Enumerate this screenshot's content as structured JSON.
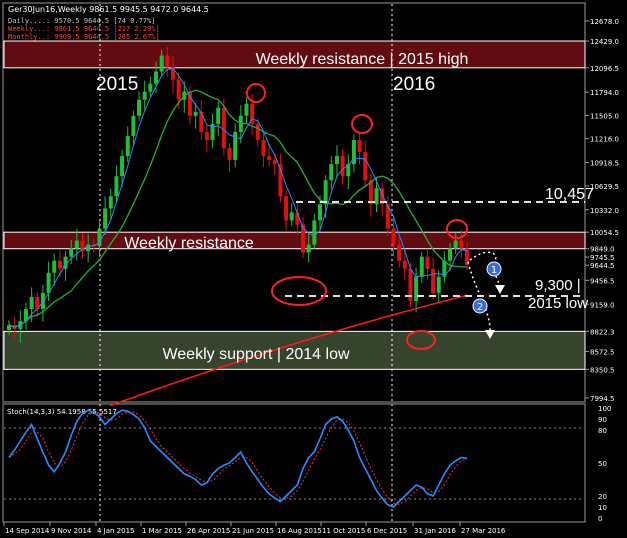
{
  "header": {
    "symbol_line": "Ger30Jun16,Weekly  9861.5 9945.5 9472.0 9644.5",
    "info_lines": [
      {
        "text": "Daily....: 9570.5 9644.5 [74 0.77%]",
        "color": "#c8c8c8"
      },
      {
        "text": "Weekly...: 9861.5 9644.5 [217 2.20%]",
        "color": "#ff4040"
      },
      {
        "text": "Monthly..: 9909.5 9644.5 [265 2.67%]",
        "color": "#ff4040"
      }
    ]
  },
  "annotations": {
    "year_2015": "2015",
    "year_2016": "2016",
    "weekly_resistance_top": "Weekly resistance | 2015 high",
    "weekly_resistance_mid": "Weekly resistance",
    "weekly_support": "Weekly support | 2014 low",
    "level_10457": "10,457",
    "level_9300_a": "9,300 |",
    "level_9300_b": "2015 low",
    "marker_1": "1",
    "marker_2": "2"
  },
  "price_axis": {
    "labels": [
      "12678.0",
      "12429.0",
      "12096.5",
      "11794.0",
      "11505.0",
      "11216.0",
      "10918.5",
      "10629.5",
      "10332.0",
      "10054.5",
      "9849.0",
      "9745.5",
      "9644.5",
      "9456.5",
      "9159.0",
      "8822.3",
      "8572.5",
      "8350.5",
      "7994.5"
    ]
  },
  "stoch": {
    "label": "Stoch(14,3,3) 54.1958 55.5517",
    "axis_labels": [
      "100",
      "90",
      "80",
      "50",
      "20",
      "10",
      "0"
    ]
  },
  "x_axis": {
    "labels": [
      "14 Sep 2014",
      "9 Nov 2014",
      "4 Jan 2015",
      "1 Mar 2015",
      "26 Apr 2015",
      "21 Jun 2015",
      "16 Aug 2015",
      "11 Oct 2015",
      "6 Dec 2015",
      "31 Jan 2016",
      "27 Mar 2016"
    ]
  },
  "colors": {
    "background": "#000000",
    "bull_candle": "#1fbf3a",
    "bear_candle": "#e01010",
    "ma_fast": "#2a8cff",
    "ma_mid": "#22b03a",
    "ma_slow": "#ff1a1a",
    "resistance_zone": "#6b0d12",
    "support_zone": "#3c4a32",
    "stoch_main": "#2a8cff",
    "stoch_signal": "#ff3030"
  },
  "chart_data": {
    "type": "candlestick",
    "symbol": "Ger30Jun16",
    "timeframe": "Weekly",
    "x": [
      "14 Sep 2014",
      "9 Nov 2014",
      "4 Jan 2015",
      "1 Mar 2015",
      "26 Apr 2015",
      "21 Jun 2015",
      "16 Aug 2015",
      "11 Oct 2015",
      "6 Dec 2015",
      "31 Jan 2016",
      "27 Mar 2016"
    ],
    "ohlc_last": {
      "open": 9861.5,
      "high": 9945.5,
      "low": 9472.0,
      "close": 9644.5
    },
    "price_path": [
      8900,
      8850,
      8950,
      9100,
      9250,
      9100,
      9300,
      9550,
      9700,
      9600,
      9750,
      9850,
      9950,
      9820,
      9900,
      9880,
      10100,
      10350,
      10500,
      10750,
      11000,
      11250,
      11500,
      11700,
      11800,
      11900,
      12050,
      12250,
      12100,
      11950,
      11700,
      11800,
      11500,
      11550,
      11300,
      11200,
      11400,
      11600,
      11100,
      10950,
      11300,
      11500,
      11650,
      11400,
      11200,
      11000,
      10950,
      10900,
      10500,
      10200,
      10300,
      10150,
      9800,
      9900,
      10200,
      10400,
      10700,
      10900,
      11000,
      10750,
      10900,
      11200,
      11050,
      10700,
      10400,
      10600,
      10400,
      10100,
      9900,
      9700,
      9600,
      9200,
      9500,
      9750,
      9600,
      9300,
      9500,
      9700,
      9850,
      9950,
      9850,
      9644.5
    ],
    "ylim": [
      7994.5,
      12678.0
    ],
    "zones": [
      {
        "name": "Weekly resistance | 2015 high",
        "from": 12096.5,
        "to": 12429.0
      },
      {
        "name": "Weekly resistance",
        "from": 9849.0,
        "to": 10054.5
      },
      {
        "name": "Weekly support | 2014 low",
        "from": 8350.5,
        "to": 8822.3
      }
    ],
    "levels": [
      {
        "value": 10457
      },
      {
        "value": 9300
      }
    ],
    "stochastic": {
      "params": "14,3,3",
      "main": 54.1958,
      "signal": 55.5517,
      "ylim": [
        0,
        100
      ],
      "levels": [
        20,
        80
      ],
      "path": [
        55,
        62,
        70,
        78,
        85,
        72,
        60,
        48,
        42,
        50,
        60,
        75,
        88,
        95,
        98,
        96,
        92,
        85,
        90,
        95,
        98,
        97,
        94,
        90,
        82,
        70,
        65,
        60,
        55,
        50,
        45,
        40,
        38,
        35,
        30,
        32,
        40,
        45,
        48,
        50,
        55,
        60,
        50,
        42,
        35,
        28,
        22,
        18,
        15,
        20,
        25,
        30,
        45,
        55,
        60,
        72,
        85,
        90,
        92,
        88,
        80,
        70,
        55,
        45,
        35,
        25,
        18,
        12,
        10,
        15,
        20,
        25,
        30,
        28,
        22,
        20,
        30,
        40,
        48,
        52,
        55,
        54.2
      ]
    }
  }
}
